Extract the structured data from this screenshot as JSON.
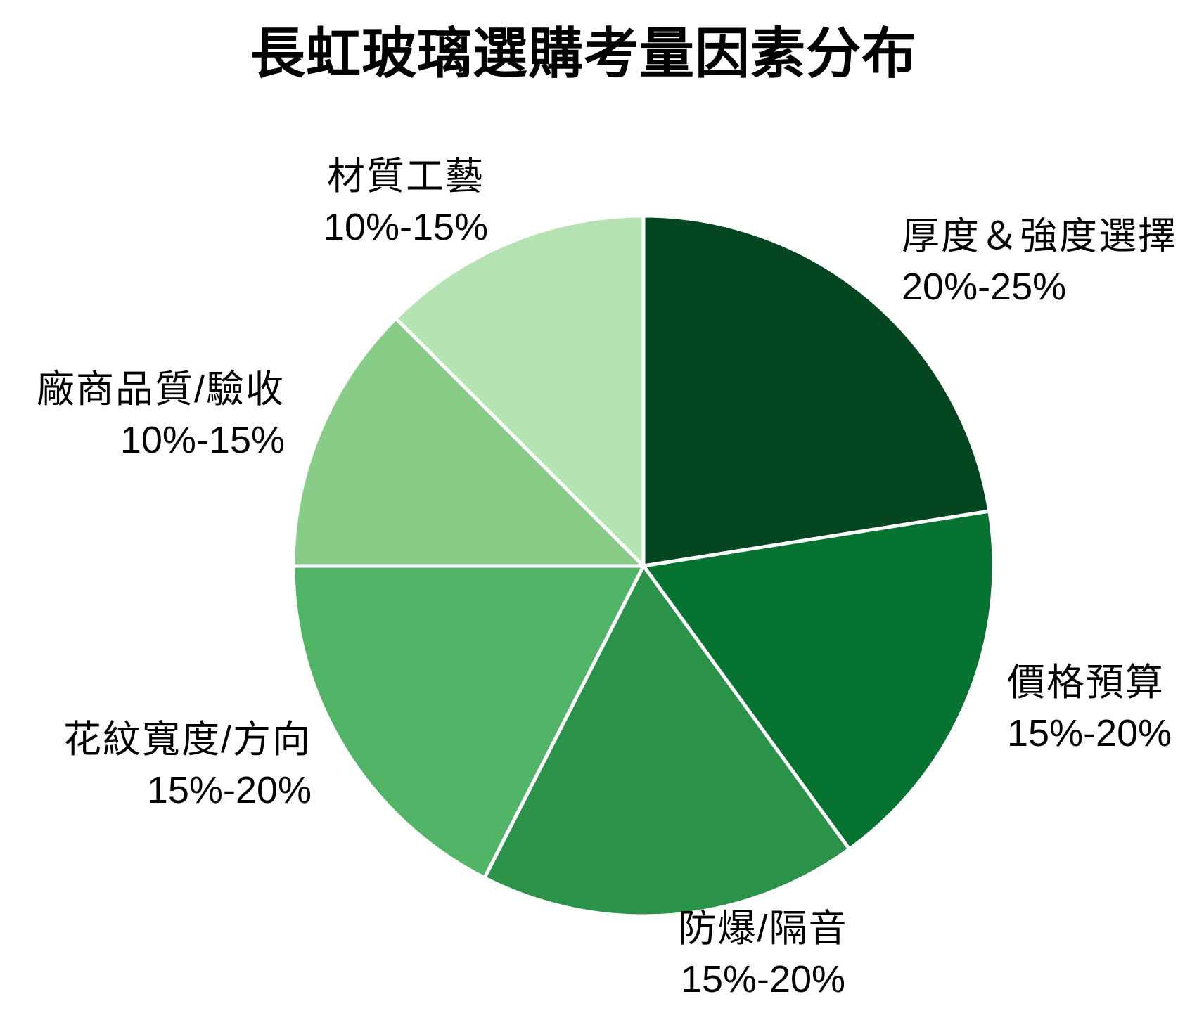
{
  "page": {
    "background_color": "#ffffff",
    "text_color": "#000000"
  },
  "chart_data": {
    "type": "pie",
    "title": "長虹玻璃選購考量因素分布",
    "legend_position": "none",
    "labels_position": "outside",
    "start_angle_deg": 0,
    "direction": "clockwise",
    "separator_color": "#ffffff",
    "slices": [
      {
        "label": "厚度＆強度選擇",
        "range": "20%-25%",
        "value": 22.5,
        "color": "#04461f"
      },
      {
        "label": "價格預算",
        "range": "15%-20%",
        "value": 17.5,
        "color": "#067331"
      },
      {
        "label": "防爆/隔音",
        "range": "15%-20%",
        "value": 17.5,
        "color": "#2a9349"
      },
      {
        "label": "花紋寬度/方向",
        "range": "15%-20%",
        "value": 17.5,
        "color": "#52b467"
      },
      {
        "label": "廠商品質/驗收",
        "range": "10%-15%",
        "value": 12.5,
        "color": "#87cd88"
      },
      {
        "label": "材質工藝",
        "range": "10%-15%",
        "value": 12.5,
        "color": "#b4e2b2"
      }
    ]
  }
}
